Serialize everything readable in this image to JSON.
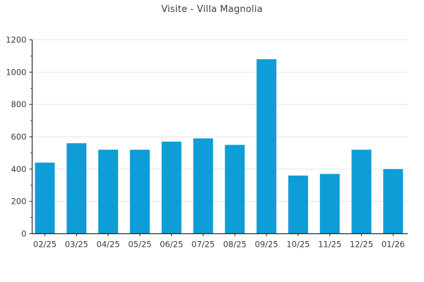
{
  "chart_data": {
    "type": "bar",
    "title": "Visite - Villa Magnolia",
    "categories": [
      "02/25",
      "03/25",
      "04/25",
      "05/25",
      "06/25",
      "07/25",
      "08/25",
      "09/25",
      "10/25",
      "11/25",
      "12/25",
      "01/26"
    ],
    "values": [
      440,
      560,
      520,
      520,
      570,
      590,
      550,
      1080,
      360,
      370,
      520,
      400
    ],
    "xlabel": "",
    "ylabel": "",
    "ylim": [
      0,
      1200
    ],
    "yticks": [
      0,
      200,
      400,
      600,
      800,
      1000,
      1200
    ],
    "minor_yticks": [
      100,
      300,
      500,
      700,
      900,
      1100
    ],
    "grid": "horizontal-major-only",
    "legend": "none",
    "colors": {
      "bar": "#0E9DD6",
      "grid": "#e4e4e4",
      "axis": "#262626",
      "tick_label": "#3a3a3a",
      "title": "#3f3f3f",
      "background": "#ffffff"
    }
  }
}
